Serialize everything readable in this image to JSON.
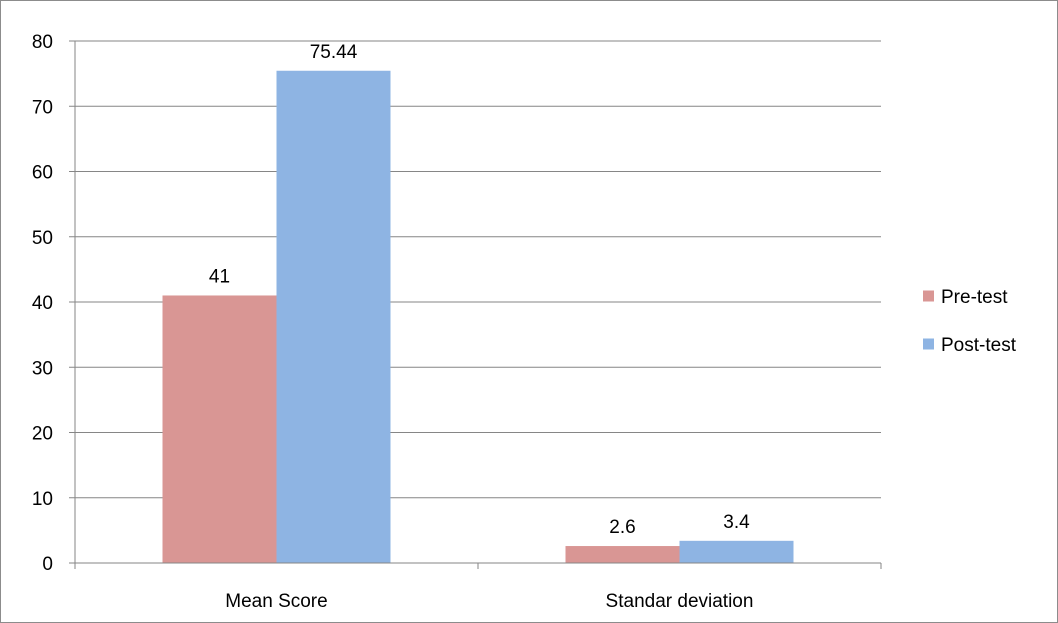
{
  "chart_data": {
    "type": "bar",
    "categories": [
      "Mean Score",
      "Standar deviation"
    ],
    "series": [
      {
        "name": "Pre-test",
        "values": [
          41,
          2.6
        ],
        "labels": [
          "41",
          "2.6"
        ],
        "color": "#d99694"
      },
      {
        "name": "Post-test",
        "values": [
          75.44,
          3.4
        ],
        "labels": [
          "75.44",
          "3.4"
        ],
        "color": "#8eb4e3"
      }
    ],
    "ylim": [
      0,
      80
    ],
    "yticks": [
      0,
      10,
      20,
      30,
      40,
      50,
      60,
      70,
      80
    ],
    "ytick_labels": [
      "0",
      "10",
      "20",
      "30",
      "40",
      "50",
      "60",
      "70",
      "80"
    ],
    "grid": true,
    "legend_position": "right",
    "title": "",
    "xlabel": "",
    "ylabel": ""
  }
}
